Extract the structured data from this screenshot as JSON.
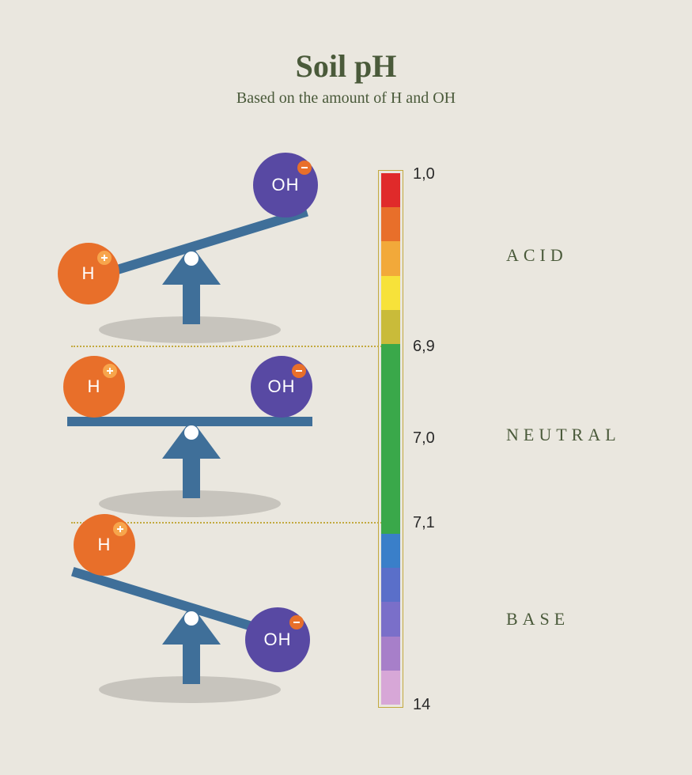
{
  "header": {
    "title": "Soil pH",
    "subtitle": "Based on the amount of H and OH"
  },
  "colors": {
    "background": "#eae7df",
    "text_olive": "#4a5a3a",
    "h_ball": "#e86f2a",
    "oh_ball": "#5849a3",
    "fulcrum": "#3f6f99",
    "shadow": "rgba(0,0,0,0.15)",
    "dotted": "#c2a93f",
    "scale_border": "#c2a93f"
  },
  "ions": {
    "h_label": "H",
    "oh_label": "OH",
    "plus_color": "#f7a54c",
    "minus_color": "#e86f2a"
  },
  "zones": {
    "acid": {
      "category": "ACID",
      "tilt_deg": -15
    },
    "neutral": {
      "category": "NEUTRAL",
      "tilt_deg": 0
    },
    "base": {
      "category": "BASE",
      "tilt_deg": 15
    }
  },
  "scale": {
    "labels": {
      "top": "1,0",
      "upper_break": "6,9",
      "mid": "7,0",
      "lower_break": "7,1",
      "bottom": "14"
    },
    "segments": [
      {
        "color": "#e02a2a",
        "flex": 0.9
      },
      {
        "color": "#e86f2a",
        "flex": 0.9
      },
      {
        "color": "#f2a93a",
        "flex": 0.9
      },
      {
        "color": "#f7e23a",
        "flex": 0.9
      },
      {
        "color": "#c9bb3a",
        "flex": 0.9
      },
      {
        "color": "#3aa84a",
        "flex": 5.0
      },
      {
        "color": "#3a7fc9",
        "flex": 0.9
      },
      {
        "color": "#5a6fc9",
        "flex": 0.9
      },
      {
        "color": "#7a6fc9",
        "flex": 0.9
      },
      {
        "color": "#a77fc9",
        "flex": 0.9
      },
      {
        "color": "#d7a7d7",
        "flex": 0.9
      }
    ]
  },
  "typography": {
    "title_fontsize": 40,
    "subtitle_fontsize": 20,
    "category_fontsize": 22,
    "category_letterspacing": 6,
    "scale_label_fontsize": 20
  }
}
